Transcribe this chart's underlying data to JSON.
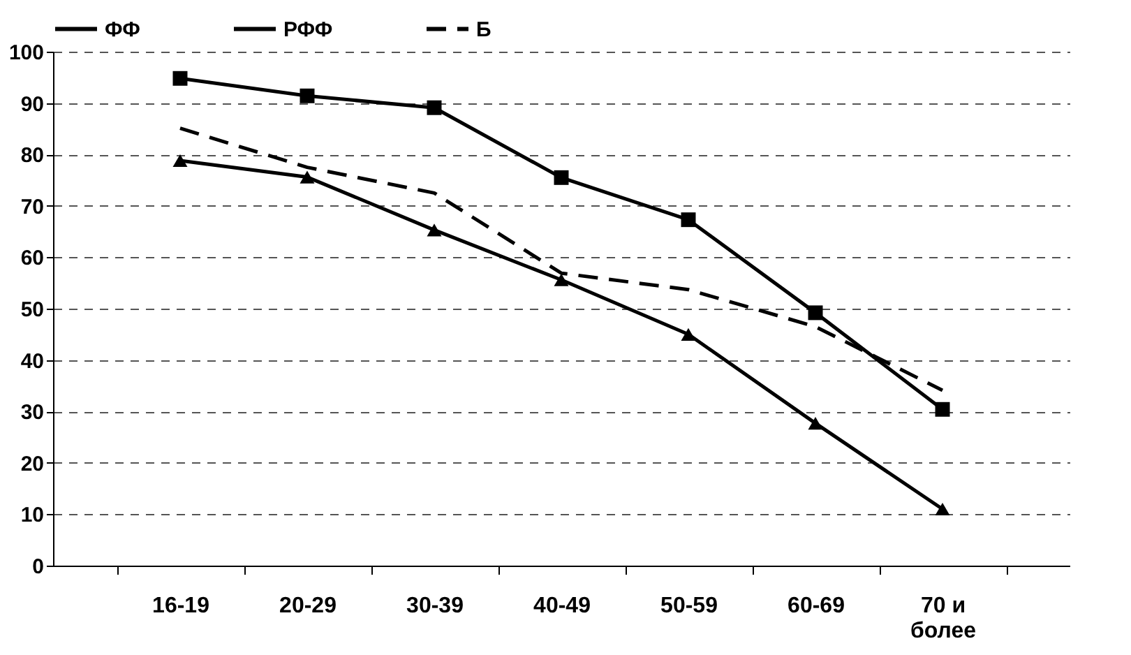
{
  "chart_data": {
    "type": "line",
    "categories": [
      "16-19",
      "20-29",
      "30-39",
      "40-49",
      "50-59",
      "60-69",
      "70 и\nболее"
    ],
    "series": [
      {
        "name": "ФФ",
        "color": "#000000",
        "marker": "square",
        "line_style": "solid",
        "values": [
          94.8,
          91.4,
          89.1,
          75.5,
          67.3,
          49.2,
          30.4
        ]
      },
      {
        "name": "РФФ",
        "color": "#000000",
        "marker": "triangle",
        "line_style": "solid",
        "values": [
          78.8,
          75.6,
          65.3,
          55.6,
          45.0,
          27.7,
          11.0
        ]
      },
      {
        "name": "Б",
        "color": "#000000",
        "marker": "none",
        "line_style": "dashed",
        "values": [
          85.1,
          77.5,
          72.5,
          56.9,
          53.7,
          46.5,
          34.1
        ]
      }
    ],
    "ylim": [
      0,
      100
    ],
    "yticks": [
      0,
      10,
      20,
      30,
      40,
      50,
      60,
      70,
      80,
      90,
      100
    ],
    "grid": "y",
    "legend": "top"
  }
}
